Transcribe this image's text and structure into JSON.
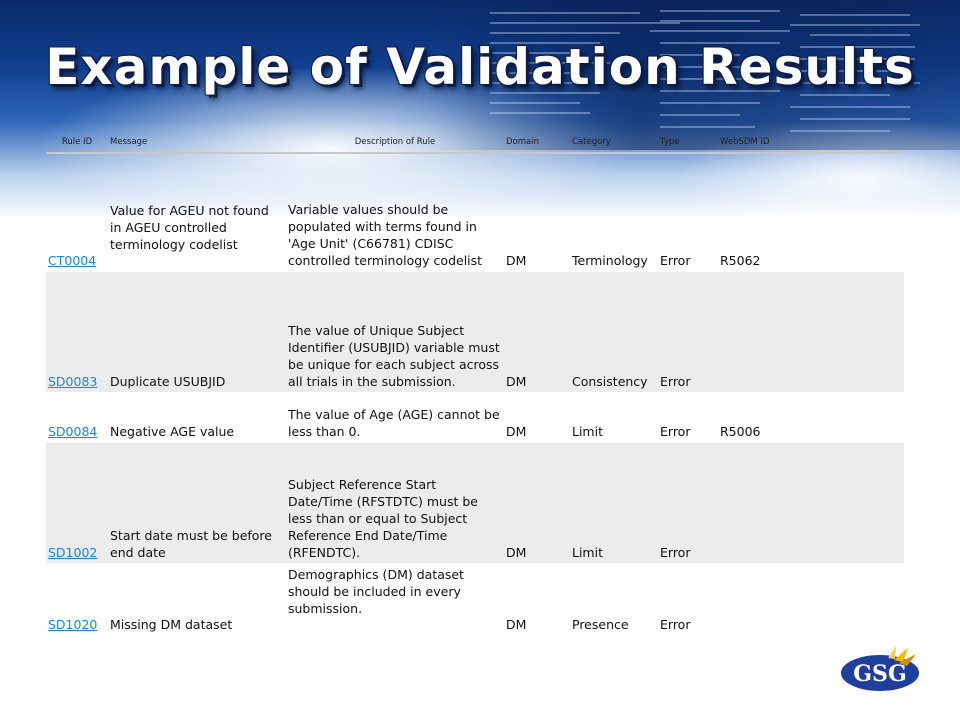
{
  "slide": {
    "title": "Example of Validation Results"
  },
  "table": {
    "headers": {
      "rule_id": "Rule ID",
      "message": "Message",
      "description": "Description of Rule",
      "domain": "Domain",
      "category": "Category",
      "type": "Type",
      "websdm_id": "WebSDM ID"
    },
    "rows": [
      {
        "rule_id": "CT0004",
        "message": "Value for AGEU not found in AGEU controlled terminology codelist",
        "description": "Variable values should be populated with terms found in 'Age Unit' (C66781) CDISC controlled terminology codelist",
        "domain": "DM",
        "category": "Terminology",
        "type": "Error",
        "websdm_id": "R5062"
      },
      {
        "rule_id": "SD0083",
        "message": "Duplicate USUBJID",
        "description": "The value of Unique Subject Identifier (USUBJID) variable must be unique for each subject across all trials in the submission.",
        "domain": "DM",
        "category": "Consistency",
        "type": "Error",
        "websdm_id": ""
      },
      {
        "rule_id": "SD0084",
        "message": "Negative AGE value",
        "description": "The value of Age (AGE) cannot be less than 0.",
        "domain": "DM",
        "category": "Limit",
        "type": "Error",
        "websdm_id": "R5006"
      },
      {
        "rule_id": "SD1002",
        "message": "Start date must be before end date",
        "description": "Subject Reference Start Date/Time (RFSTDTC) must be less than or equal to Subject Reference End Date/Time (RFENDTC).",
        "domain": "DM",
        "category": "Limit",
        "type": "Error",
        "websdm_id": ""
      },
      {
        "rule_id": "SD1020",
        "message": "Missing DM dataset",
        "description": "Demographics (DM) dataset should be included in every submission.",
        "domain": "DM",
        "category": "Presence",
        "type": "Error",
        "websdm_id": ""
      }
    ]
  },
  "logo": {
    "text": "GSG"
  },
  "colors": {
    "link": "#1b86d8",
    "title_text": "#ffffff",
    "title_outline": "#0b1c4a",
    "row_shade": "#ececec",
    "logo_blue": "#1f3f9c",
    "logo_accent": "#f2b705"
  }
}
